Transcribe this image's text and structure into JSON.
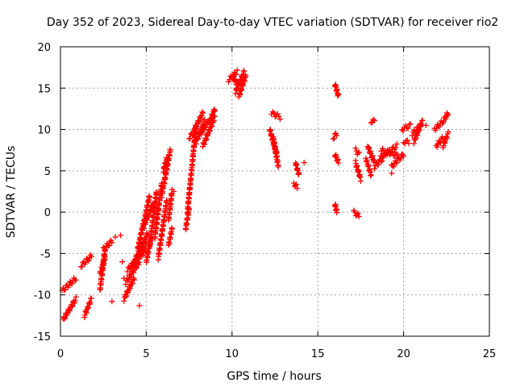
{
  "chart_data": {
    "type": "scatter",
    "title": "Day 352 of 2023, Sidereal Day-to-day VTEC variation (SDTVAR) for receiver rio2",
    "xlabel": "GPS time / hours",
    "ylabel": "SDTVAR / TECUs",
    "xlim": [
      0,
      25
    ],
    "ylim": [
      -15,
      20
    ],
    "xticks": [
      0,
      5,
      10,
      15,
      20,
      25
    ],
    "yticks": [
      -15,
      -10,
      -5,
      0,
      5,
      10,
      15,
      20
    ],
    "xtick_labels": [
      "0",
      "5",
      "10",
      "15",
      "20",
      "25"
    ],
    "ytick_labels": [
      "-15",
      "-10",
      "-5",
      "0",
      "5",
      "10",
      "15",
      "20"
    ],
    "grid": true,
    "marker": "plus",
    "color": "#ff0000",
    "series": [
      {
        "name": "SDTVAR",
        "segments": [
          {
            "x0": 0.1,
            "x1": 0.9,
            "y0": -9.5,
            "y1": -8.0
          },
          {
            "x0": 0.15,
            "x1": 0.9,
            "y0": -13.0,
            "y1": -10.5
          },
          {
            "x0": 1.4,
            "x1": 1.8,
            "y0": -12.5,
            "y1": -10.5
          },
          {
            "x0": 1.2,
            "x1": 1.8,
            "y0": -6.5,
            "y1": -5.3
          },
          {
            "x0": 2.3,
            "x1": 2.6,
            "y0": -9.5,
            "y1": -4.5
          },
          {
            "x0": 2.3,
            "x1": 2.6,
            "y0": -7.5,
            "y1": -5.5
          },
          {
            "x0": 2.5,
            "x1": 3.0,
            "y0": -4.5,
            "y1": -3.5
          },
          {
            "x0": 3.7,
            "x1": 4.3,
            "y0": -10.5,
            "y1": -8.0
          },
          {
            "x0": 3.8,
            "x1": 4.6,
            "y0": -8.5,
            "y1": -6.0
          },
          {
            "x0": 3.9,
            "x1": 5.0,
            "y0": -7.0,
            "y1": -4.5
          },
          {
            "x0": 4.2,
            "x1": 5.0,
            "y0": -6.5,
            "y1": -3.5
          },
          {
            "x0": 4.4,
            "x1": 5.1,
            "y0": -5.5,
            "y1": -2.5
          },
          {
            "x0": 4.5,
            "x1": 5.2,
            "y0": -4.5,
            "y1": 2.0
          },
          {
            "x0": 4.8,
            "x1": 5.4,
            "y0": -2.0,
            "y1": 1.0
          },
          {
            "x0": 5.0,
            "x1": 5.3,
            "y0": -6.0,
            "y1": -3.0
          },
          {
            "x0": 5.2,
            "x1": 5.6,
            "y0": -4.0,
            "y1": 2.5
          },
          {
            "x0": 5.5,
            "x1": 5.9,
            "y0": -3.0,
            "y1": 3.5
          },
          {
            "x0": 5.7,
            "x1": 6.2,
            "y0": -5.5,
            "y1": 1.5
          },
          {
            "x0": 5.9,
            "x1": 6.4,
            "y0": 2.0,
            "y1": 7.5
          },
          {
            "x0": 6.0,
            "x1": 6.2,
            "y0": 5.0,
            "y1": 6.5
          },
          {
            "x0": 6.3,
            "x1": 6.5,
            "y0": -4.0,
            "y1": -2.0
          },
          {
            "x0": 6.3,
            "x1": 6.5,
            "y0": -1.0,
            "y1": 2.5
          },
          {
            "x0": 7.3,
            "x1": 7.5,
            "y0": -2.0,
            "y1": 0.5
          },
          {
            "x0": 7.4,
            "x1": 7.9,
            "y0": 0.0,
            "y1": 10.5
          },
          {
            "x0": 7.5,
            "x1": 7.9,
            "y0": 9.0,
            "y1": 10.0
          },
          {
            "x0": 7.8,
            "x1": 8.3,
            "y0": 10.0,
            "y1": 12.0
          },
          {
            "x0": 7.9,
            "x1": 8.4,
            "y0": 8.5,
            "y1": 11.0
          },
          {
            "x0": 8.2,
            "x1": 8.6,
            "y0": 9.5,
            "y1": 11.0
          },
          {
            "x0": 8.3,
            "x1": 9.0,
            "y0": 8.0,
            "y1": 11.5
          },
          {
            "x0": 8.7,
            "x1": 9.0,
            "y0": 11.0,
            "y1": 12.5
          },
          {
            "x0": 9.8,
            "x1": 10.3,
            "y0": 16.0,
            "y1": 17.0
          },
          {
            "x0": 10.0,
            "x1": 10.3,
            "y0": 16.5,
            "y1": 15.5
          },
          {
            "x0": 10.2,
            "x1": 10.7,
            "y0": 14.5,
            "y1": 17.0
          },
          {
            "x0": 10.4,
            "x1": 10.8,
            "y0": 14.0,
            "y1": 16.5
          },
          {
            "x0": 12.3,
            "x1": 12.8,
            "y0": 12.0,
            "y1": 11.5
          },
          {
            "x0": 12.2,
            "x1": 12.6,
            "y0": 10.0,
            "y1": 7.0
          },
          {
            "x0": 12.4,
            "x1": 12.7,
            "y0": 9.0,
            "y1": 5.5
          },
          {
            "x0": 13.7,
            "x1": 13.9,
            "y0": 6.0,
            "y1": 4.5
          },
          {
            "x0": 13.6,
            "x1": 13.8,
            "y0": 3.5,
            "y1": 3.0
          },
          {
            "x0": 16.0,
            "x1": 16.2,
            "y0": 15.5,
            "y1": 14.0
          },
          {
            "x0": 16.0,
            "x1": 16.2,
            "y0": 7.0,
            "y1": 6.0
          },
          {
            "x0": 15.9,
            "x1": 16.1,
            "y0": 9.0,
            "y1": 9.5
          },
          {
            "x0": 16.0,
            "x1": 16.1,
            "y0": 1.0,
            "y1": 0.0
          },
          {
            "x0": 17.1,
            "x1": 17.4,
            "y0": 0.0,
            "y1": -0.5
          },
          {
            "x0": 17.2,
            "x1": 17.4,
            "y0": 7.5,
            "y1": 7.0
          },
          {
            "x0": 17.2,
            "x1": 17.5,
            "y0": 6.0,
            "y1": 4.0
          },
          {
            "x0": 17.8,
            "x1": 18.1,
            "y0": 6.5,
            "y1": 4.5
          },
          {
            "x0": 17.9,
            "x1": 18.3,
            "y0": 8.0,
            "y1": 6.0
          },
          {
            "x0": 18.1,
            "x1": 18.3,
            "y0": 11.0,
            "y1": 11.0
          },
          {
            "x0": 18.3,
            "x1": 18.8,
            "y0": 5.5,
            "y1": 6.5
          },
          {
            "x0": 18.6,
            "x1": 19.6,
            "y0": 6.5,
            "y1": 8.0
          },
          {
            "x0": 18.7,
            "x1": 19.7,
            "y0": 7.5,
            "y1": 6.8
          },
          {
            "x0": 19.3,
            "x1": 20.0,
            "y0": 5.5,
            "y1": 7.0
          },
          {
            "x0": 20.0,
            "x1": 20.3,
            "y0": 8.5,
            "y1": 8.5
          },
          {
            "x0": 19.9,
            "x1": 20.4,
            "y0": 10.0,
            "y1": 10.5
          },
          {
            "x0": 20.5,
            "x1": 21.0,
            "y0": 9.5,
            "y1": 10.5
          },
          {
            "x0": 20.6,
            "x1": 21.1,
            "y0": 8.5,
            "y1": 11.0
          },
          {
            "x0": 21.8,
            "x1": 22.3,
            "y0": 10.0,
            "y1": 11.0
          },
          {
            "x0": 21.9,
            "x1": 22.3,
            "y0": 8.0,
            "y1": 9.0
          },
          {
            "x0": 22.3,
            "x1": 22.6,
            "y0": 11.0,
            "y1": 12.0
          },
          {
            "x0": 22.3,
            "x1": 22.6,
            "y0": 8.0,
            "y1": 9.5
          }
        ],
        "points": [
          {
            "x": 3.2,
            "y": -3.0
          },
          {
            "x": 3.5,
            "y": -2.8
          },
          {
            "x": 3.0,
            "y": -10.8
          },
          {
            "x": 3.6,
            "y": -6.0
          },
          {
            "x": 3.7,
            "y": -8.0
          },
          {
            "x": 4.6,
            "y": -11.3
          },
          {
            "x": 6.6,
            "y": 2.5
          },
          {
            "x": 7.3,
            "y": -2.0
          },
          {
            "x": 14.2,
            "y": 6.0
          },
          {
            "x": 19.3,
            "y": 4.7
          },
          {
            "x": 21.3,
            "y": 10.5
          }
        ]
      }
    ]
  }
}
